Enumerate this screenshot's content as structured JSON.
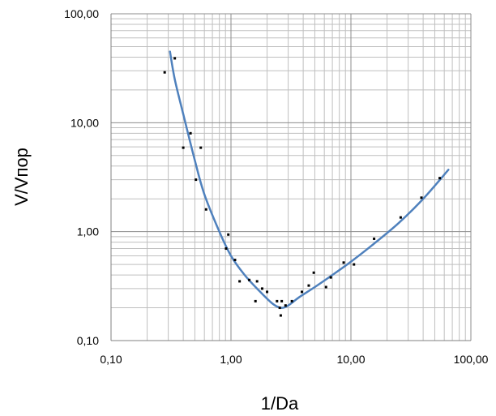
{
  "chart_data": {
    "type": "scatter",
    "title": "",
    "xlabel": "1/Da",
    "ylabel": "V/Vпор",
    "x_scale": "log",
    "y_scale": "log",
    "xlim": [
      0.1,
      100
    ],
    "ylim": [
      0.1,
      100
    ],
    "grid": true,
    "x_ticks": [
      {
        "value": 0.1,
        "label": "0,10"
      },
      {
        "value": 1,
        "label": "1,00"
      },
      {
        "value": 10,
        "label": "10,00"
      },
      {
        "value": 100,
        "label": "100,00"
      }
    ],
    "y_ticks": [
      {
        "value": 0.1,
        "label": "0,10"
      },
      {
        "value": 1,
        "label": "1,00"
      },
      {
        "value": 10,
        "label": "10,00"
      },
      {
        "value": 100,
        "label": "100,00"
      }
    ],
    "colors": {
      "curve": "#4f81bd",
      "points": "#000000",
      "grid": "#bfbfbf",
      "axis": "#808080"
    },
    "points": {
      "x": [
        0.28,
        0.34,
        0.4,
        0.46,
        0.51,
        0.56,
        0.62,
        0.91,
        0.95,
        1.08,
        1.18,
        1.42,
        1.6,
        1.65,
        1.82,
        2.0,
        2.42,
        2.55,
        2.6,
        2.65,
        2.85,
        3.22,
        3.9,
        4.45,
        4.9,
        6.2,
        6.8,
        8.7,
        10.6,
        15.6,
        26.0,
        38.7,
        55.0
      ],
      "y": [
        29.0,
        39.0,
        5.9,
        8.0,
        3.0,
        5.9,
        1.6,
        0.7,
        0.94,
        0.55,
        0.35,
        0.36,
        0.23,
        0.35,
        0.3,
        0.28,
        0.23,
        0.2,
        0.17,
        0.23,
        0.21,
        0.23,
        0.28,
        0.32,
        0.42,
        0.31,
        0.38,
        0.52,
        0.5,
        0.86,
        1.35,
        2.05,
        3.1
      ]
    },
    "series": [
      {
        "x": [
          0.31,
          0.34,
          0.4,
          0.5,
          0.6,
          0.8,
          1.0,
          1.3,
          1.7,
          2.2,
          2.6,
          3.0,
          3.7,
          5.0,
          7.0,
          10.0,
          15.0,
          25.0,
          40.0,
          65.0
        ],
        "y": [
          45.0,
          25.0,
          12.0,
          4.5,
          2.2,
          1.0,
          0.6,
          0.4,
          0.29,
          0.22,
          0.2,
          0.21,
          0.25,
          0.31,
          0.4,
          0.53,
          0.75,
          1.2,
          2.0,
          3.7
        ]
      }
    ]
  }
}
